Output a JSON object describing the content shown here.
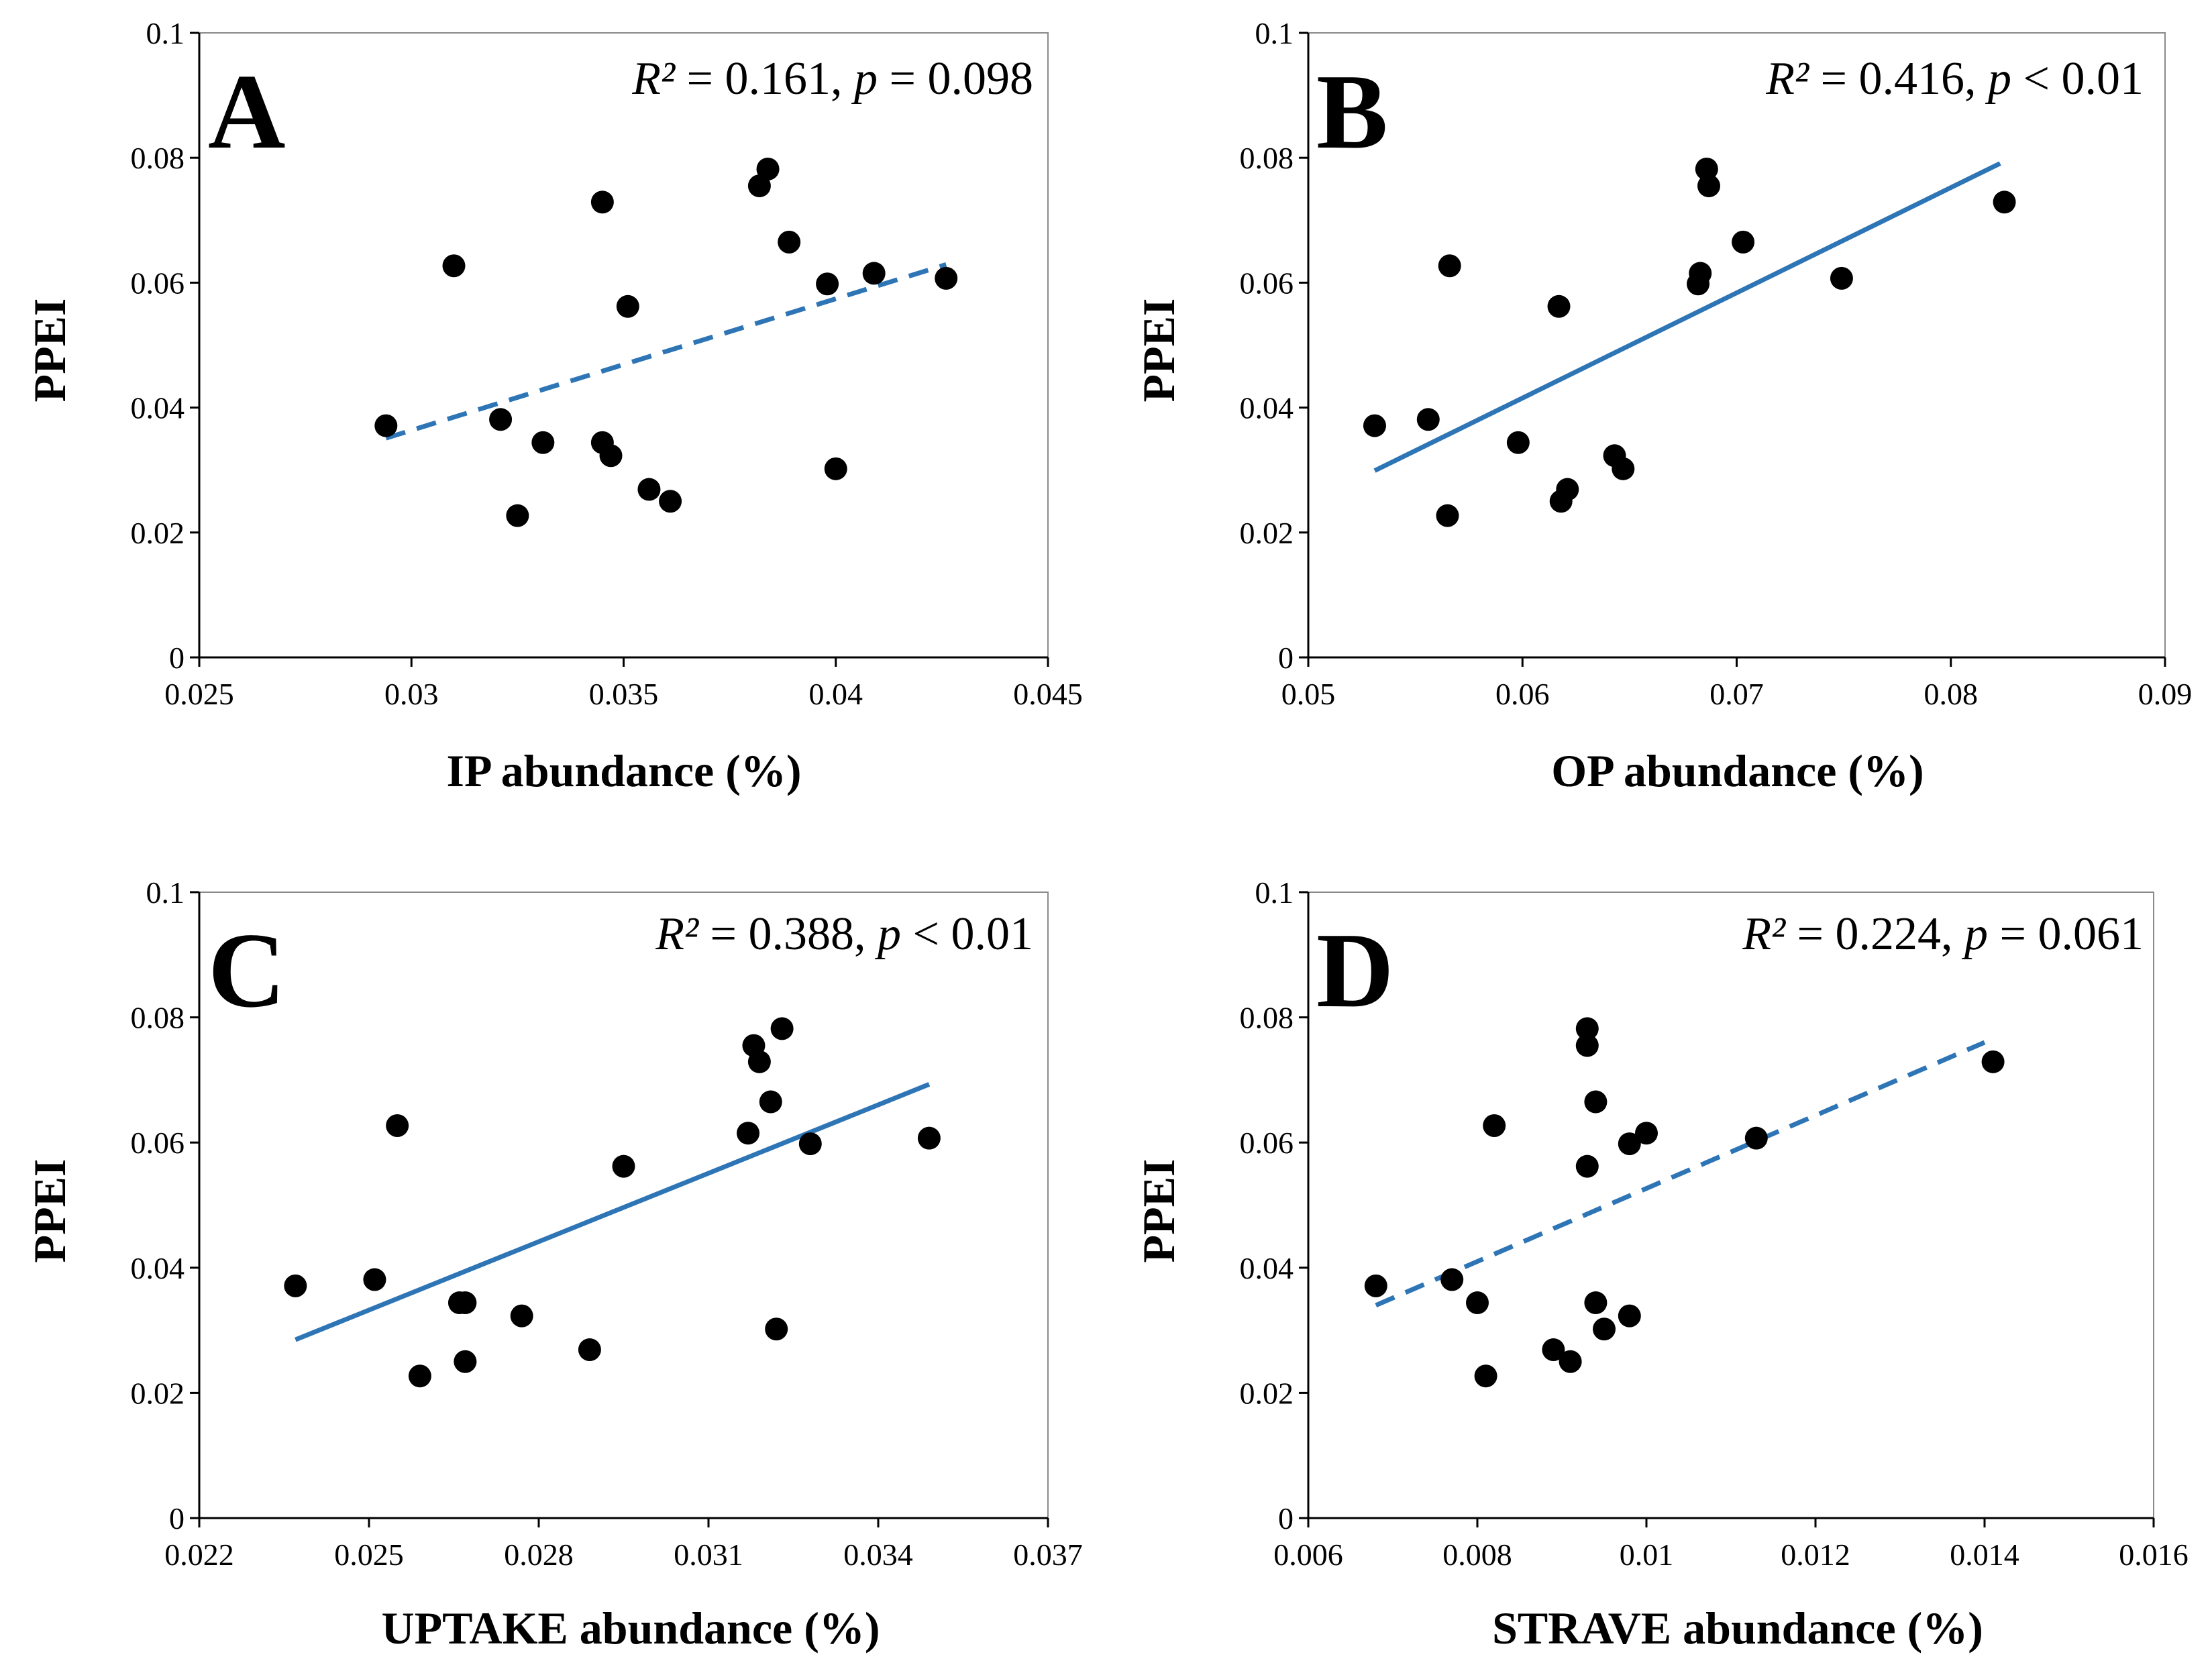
{
  "figure": {
    "panels": [
      {
        "letter": "A",
        "stat": {
          "r2_label": "R²",
          "r2_value": "= 0.161,",
          "p_label": "p",
          "p_value": "= 0.098"
        },
        "ylabel": "PPEI",
        "xlabel": "IP abundance (%)",
        "xticks": [
          "0.025",
          "0.03",
          "0.035",
          "0.04",
          "0.045"
        ],
        "yticks": [
          "0",
          "0.02",
          "0.04",
          "0.06",
          "0.08",
          "0.1"
        ]
      },
      {
        "letter": "B",
        "stat": {
          "r2_label": "R²",
          "r2_value": "= 0.416,",
          "p_label": "p",
          "p_value": "< 0.01"
        },
        "ylabel": "PPEI",
        "xlabel": "OP abundance (%)",
        "xticks": [
          "0.05",
          "0.06",
          "0.07",
          "0.08",
          "0.09"
        ],
        "yticks": [
          "0",
          "0.02",
          "0.04",
          "0.06",
          "0.08",
          "0.1"
        ]
      },
      {
        "letter": "C",
        "stat": {
          "r2_label": "R²",
          "r2_value": "= 0.388,",
          "p_label": "p",
          "p_value": "< 0.01"
        },
        "ylabel": "PPEI",
        "xlabel": "UPTAKE abundance (%)",
        "xticks": [
          "0.022",
          "0.025",
          "0.028",
          "0.031",
          "0.034",
          "0.037"
        ],
        "yticks": [
          "0",
          "0.02",
          "0.04",
          "0.06",
          "0.08",
          "0.1"
        ]
      },
      {
        "letter": "D",
        "stat": {
          "r2_label": "R²",
          "r2_value": "= 0.224,",
          "p_label": "p",
          "p_value": "= 0.061"
        },
        "ylabel": "PPEI",
        "xlabel": "STRAVE abundance (%)",
        "xticks": [
          "0.006",
          "0.008",
          "0.01",
          "0.012",
          "0.014",
          "0.016"
        ],
        "yticks": [
          "0",
          "0.02",
          "0.04",
          "0.06",
          "0.08",
          "0.1"
        ]
      }
    ]
  },
  "chart_data": [
    {
      "type": "scatter",
      "panel": "A",
      "xlabel": "IP abundance (%)",
      "ylabel": "PPEI",
      "xlim": [
        0.025,
        0.045
      ],
      "ylim": [
        0,
        0.1
      ],
      "annotation": "R² = 0.161, p = 0.098",
      "points": [
        [
          0.0294,
          0.0371
        ],
        [
          0.031,
          0.0627
        ],
        [
          0.0321,
          0.0381
        ],
        [
          0.0325,
          0.0227
        ],
        [
          0.0331,
          0.0344
        ],
        [
          0.0345,
          0.0729
        ],
        [
          0.0345,
          0.0344
        ],
        [
          0.0347,
          0.0323
        ],
        [
          0.0351,
          0.0562
        ],
        [
          0.0356,
          0.0269
        ],
        [
          0.0361,
          0.025
        ],
        [
          0.0382,
          0.0755
        ],
        [
          0.0384,
          0.0782
        ],
        [
          0.0389,
          0.0665
        ],
        [
          0.0398,
          0.0598
        ],
        [
          0.04,
          0.0302
        ],
        [
          0.0409,
          0.0615
        ],
        [
          0.0426,
          0.0607
        ]
      ],
      "trendline": {
        "style": "dashed",
        "x": [
          0.0294,
          0.0426
        ],
        "y": [
          0.0351,
          0.0629
        ]
      }
    },
    {
      "type": "scatter",
      "panel": "B",
      "xlabel": "OP abundance (%)",
      "ylabel": "PPEI",
      "xlim": [
        0.05,
        0.09
      ],
      "ylim": [
        0,
        0.1
      ],
      "annotation": "R² = 0.416, p < 0.01",
      "points": [
        [
          0.0531,
          0.0371
        ],
        [
          0.0556,
          0.0381
        ],
        [
          0.0565,
          0.0227
        ],
        [
          0.0566,
          0.0627
        ],
        [
          0.0598,
          0.0344
        ],
        [
          0.0617,
          0.0562
        ],
        [
          0.0618,
          0.025
        ],
        [
          0.0621,
          0.0269
        ],
        [
          0.0643,
          0.0323
        ],
        [
          0.0647,
          0.0302
        ],
        [
          0.0682,
          0.0598
        ],
        [
          0.0683,
          0.0615
        ],
        [
          0.0686,
          0.0782
        ],
        [
          0.0687,
          0.0755
        ],
        [
          0.0703,
          0.0665
        ],
        [
          0.0749,
          0.0607
        ],
        [
          0.0825,
          0.0729
        ]
      ],
      "trendline": {
        "style": "solid",
        "x": [
          0.0531,
          0.0823
        ],
        "y": [
          0.0299,
          0.0791
        ]
      }
    },
    {
      "type": "scatter",
      "panel": "C",
      "xlabel": "UPTAKE abundance (%)",
      "ylabel": "PPEI",
      "xlim": [
        0.022,
        0.037
      ],
      "ylim": [
        0,
        0.1
      ],
      "annotation": "R² = 0.388, p < 0.01",
      "points": [
        [
          0.0237,
          0.0371
        ],
        [
          0.0251,
          0.0381
        ],
        [
          0.0255,
          0.0627
        ],
        [
          0.0259,
          0.0227
        ],
        [
          0.0266,
          0.0344
        ],
        [
          0.0267,
          0.0344
        ],
        [
          0.0267,
          0.025
        ],
        [
          0.0277,
          0.0323
        ],
        [
          0.0289,
          0.0269
        ],
        [
          0.0295,
          0.0562
        ],
        [
          0.0317,
          0.0615
        ],
        [
          0.0318,
          0.0755
        ],
        [
          0.0319,
          0.0729
        ],
        [
          0.0321,
          0.0665
        ],
        [
          0.0322,
          0.0302
        ],
        [
          0.0323,
          0.0782
        ],
        [
          0.0328,
          0.0598
        ],
        [
          0.0349,
          0.0607
        ]
      ],
      "trendline": {
        "style": "solid",
        "x": [
          0.0237,
          0.0349
        ],
        "y": [
          0.0285,
          0.0693
        ]
      }
    },
    {
      "type": "scatter",
      "panel": "D",
      "xlabel": "STRAVE abundance (%)",
      "ylabel": "PPEI",
      "xlim": [
        0.006,
        0.016
      ],
      "ylim": [
        0,
        0.1
      ],
      "annotation": "R² = 0.224, p = 0.061",
      "points": [
        [
          0.0068,
          0.0371
        ],
        [
          0.0077,
          0.0381
        ],
        [
          0.008,
          0.0344
        ],
        [
          0.0081,
          0.0227
        ],
        [
          0.0082,
          0.0627
        ],
        [
          0.0089,
          0.0269
        ],
        [
          0.0091,
          0.025
        ],
        [
          0.0093,
          0.0782
        ],
        [
          0.0093,
          0.0562
        ],
        [
          0.0093,
          0.0755
        ],
        [
          0.0094,
          0.0344
        ],
        [
          0.0094,
          0.0665
        ],
        [
          0.0095,
          0.0302
        ],
        [
          0.0098,
          0.0598
        ],
        [
          0.0098,
          0.0323
        ],
        [
          0.01,
          0.0615
        ],
        [
          0.0113,
          0.0607
        ],
        [
          0.0141,
          0.0729
        ]
      ],
      "trendline": {
        "style": "dashed",
        "x": [
          0.0068,
          0.014
        ],
        "y": [
          0.034,
          0.076
        ]
      }
    }
  ],
  "colors": {
    "marker": "#000000",
    "trendline": "#2e75b6",
    "axis": "#000000"
  }
}
